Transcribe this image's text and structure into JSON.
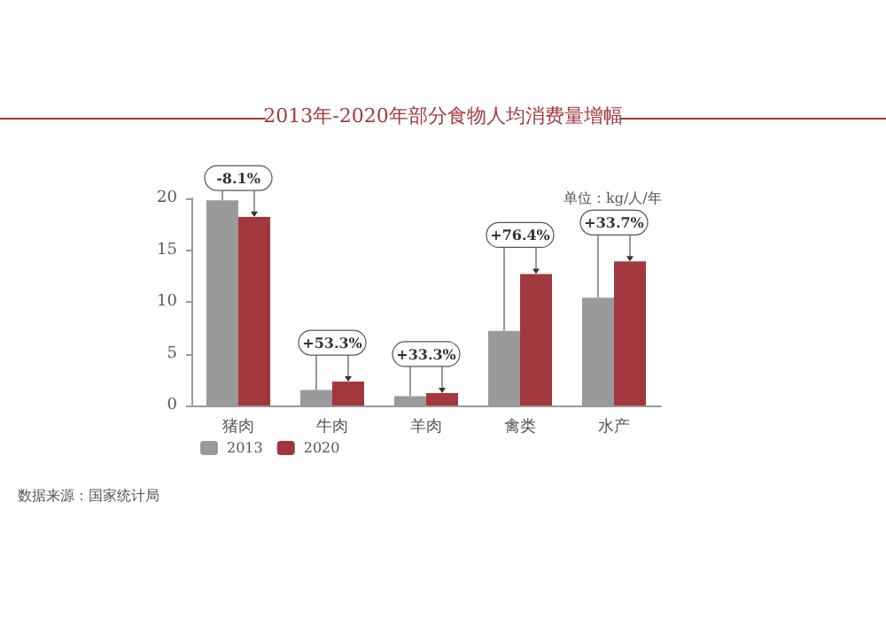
{
  "chart_data": {
    "type": "bar",
    "title": "2013年-2020年部分食物人均消费量增幅",
    "ylabel": "单位：kg/人/年",
    "categories": [
      "猪肉",
      "牛肉",
      "羊肉",
      "禽类",
      "水产"
    ],
    "series": [
      {
        "name": "2013",
        "color": "#9a9a9a",
        "values": [
          19.8,
          1.5,
          0.9,
          7.2,
          10.4
        ]
      },
      {
        "name": "2020",
        "color": "#a2383e",
        "values": [
          18.2,
          2.3,
          1.2,
          12.7,
          13.9
        ]
      }
    ],
    "ylim": [
      0,
      20
    ],
    "yticks": [
      0,
      5,
      10,
      15,
      20
    ],
    "grid": false,
    "legend": "bottom left",
    "annotations": [
      {
        "text": "-8.1%",
        "x": "猪肉",
        "y": 18.2
      },
      {
        "text": "+53.3%",
        "x": "牛肉",
        "y": 2.3
      },
      {
        "text": "+33.3%",
        "x": "羊肉",
        "y": 1.2
      },
      {
        "text": "+76.4%",
        "x": "禽类",
        "y": 12.7
      },
      {
        "text": "+33.7%",
        "x": "水产",
        "y": 13.9
      },
      "数据来源：国家统计局"
    ]
  }
}
